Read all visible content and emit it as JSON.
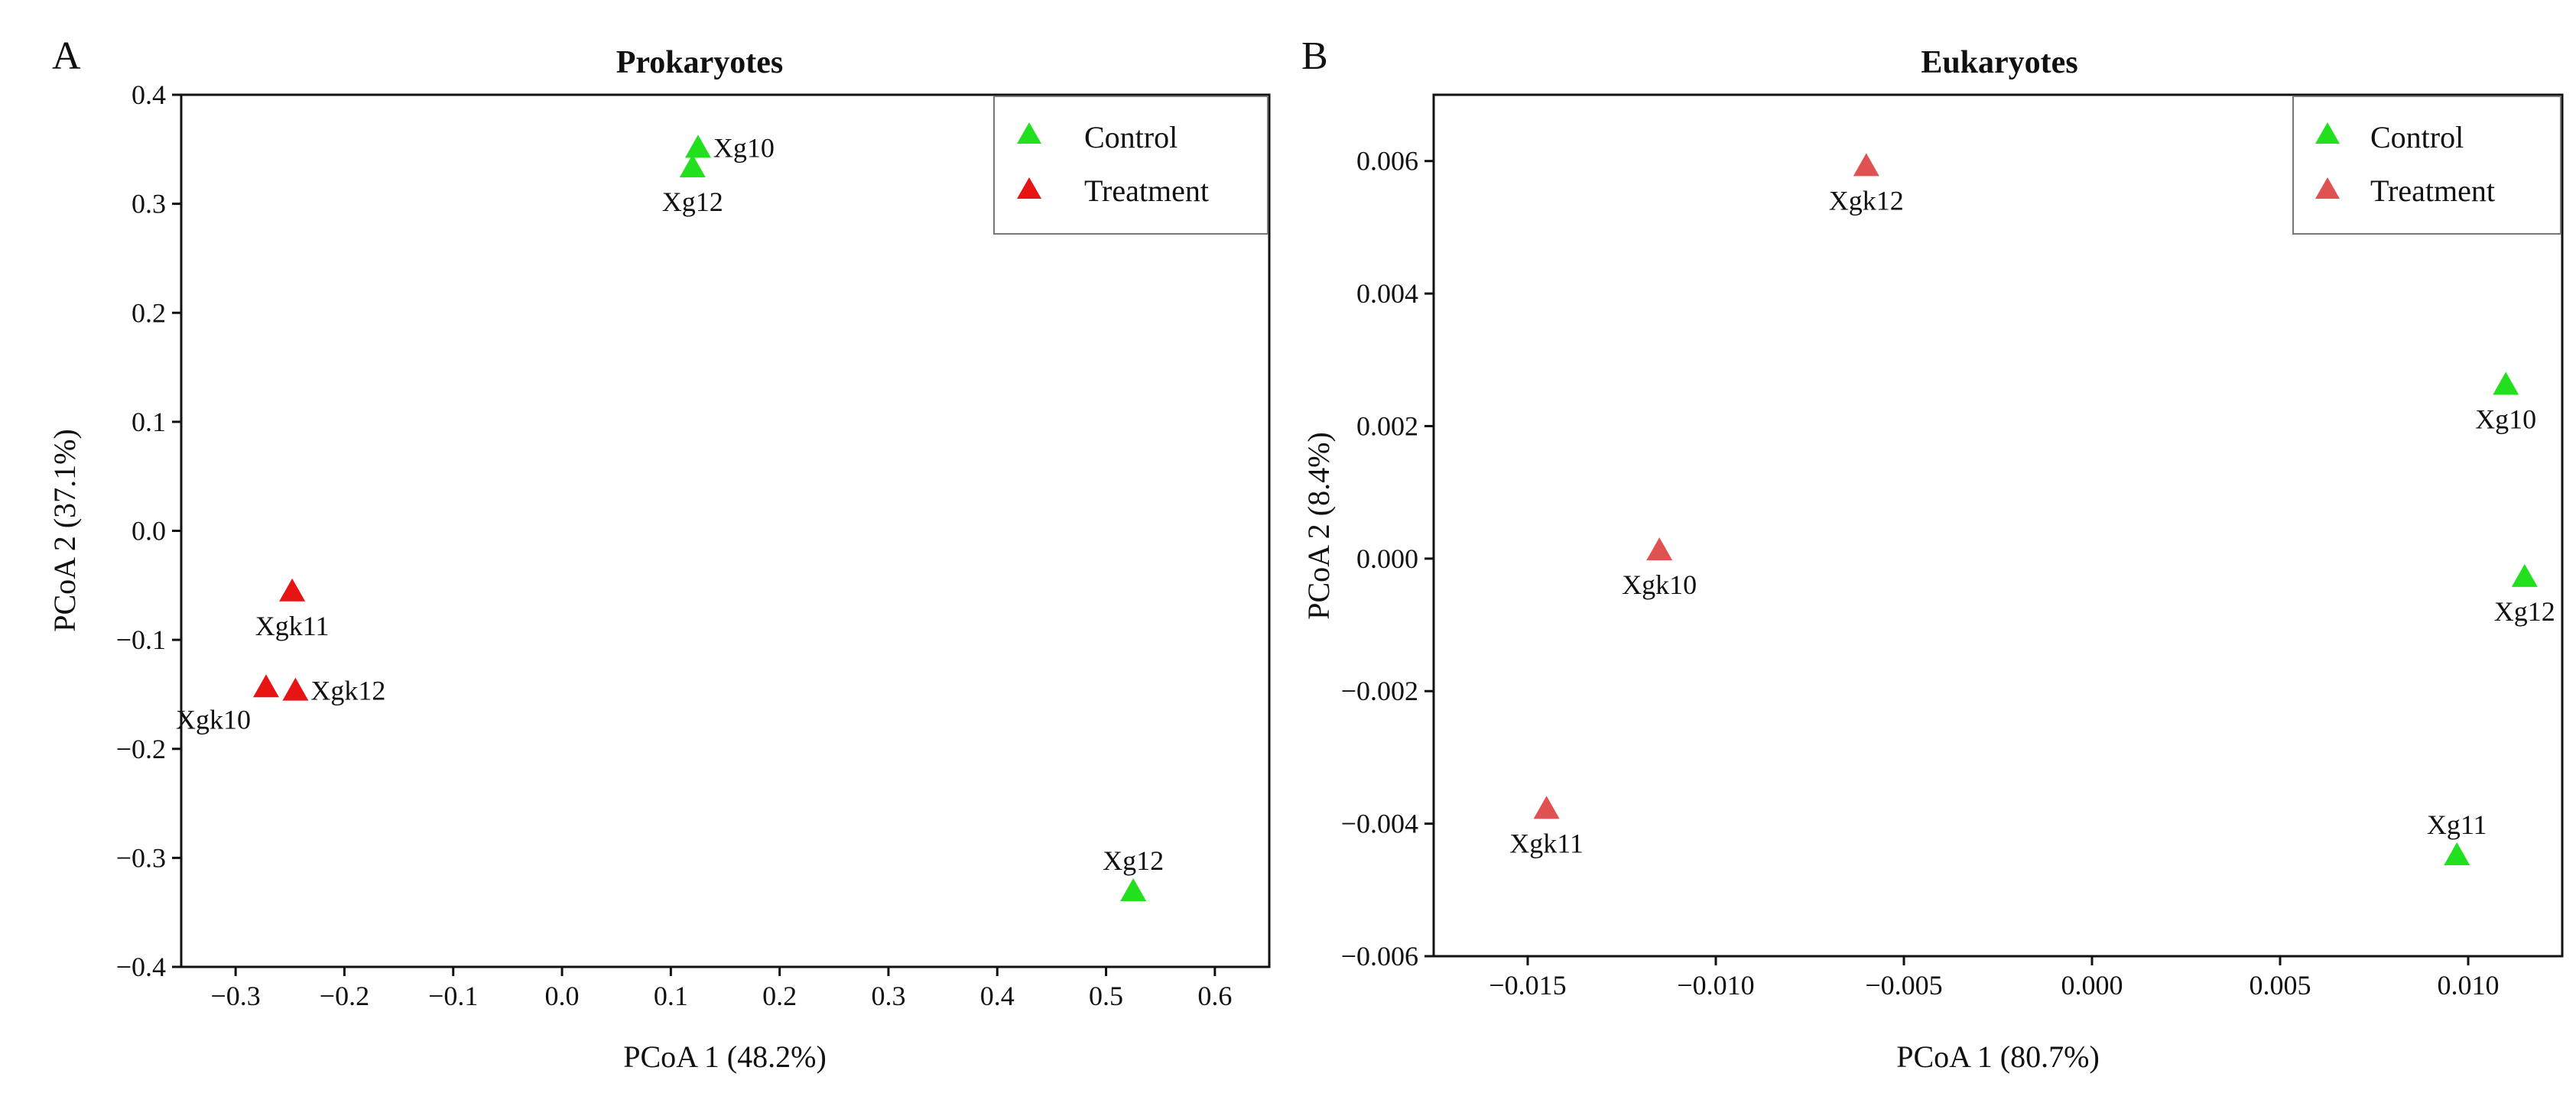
{
  "chart_data": [
    {
      "type": "scatter",
      "panel_letter": "A",
      "title": "Prokaryotes",
      "xlabel": "PCoA 1 (48.2%)",
      "ylabel": "PCoA 2 (37.1%)",
      "xlim": [
        -0.35,
        0.65
      ],
      "ylim": [
        -0.4,
        0.4
      ],
      "xticks": [
        -0.3,
        -0.2,
        -0.1,
        0.0,
        0.1,
        0.2,
        0.3,
        0.4,
        0.5,
        0.6
      ],
      "yticks": [
        -0.4,
        -0.3,
        -0.2,
        -0.1,
        0.0,
        0.1,
        0.2,
        0.3,
        0.4
      ],
      "xtick_labels": [
        "−0.3",
        "−0.2",
        "−0.1",
        "0.0",
        "0.1",
        "0.2",
        "0.3",
        "0.4",
        "0.5",
        "0.6"
      ],
      "ytick_labels": [
        "−0.4",
        "−0.3",
        "−0.2",
        "−0.1",
        "0.0",
        "0.1",
        "0.2",
        "0.3",
        "0.4"
      ],
      "grid": false,
      "legend_position": "top-right",
      "legend": [
        {
          "name": "Control",
          "color": "#22e01e"
        },
        {
          "name": "Treatment",
          "color": "#e81414"
        }
      ],
      "series": [
        {
          "name": "Control",
          "color": "#22e01e",
          "points": [
            {
              "x": 0.125,
              "y": 0.35,
              "label": "Xg10",
              "anchor": "right"
            },
            {
              "x": 0.12,
              "y": 0.332,
              "label": "Xg12",
              "anchor": "below"
            },
            {
              "x": 0.525,
              "y": -0.332,
              "label": "Xg12",
              "anchor": "above"
            }
          ]
        },
        {
          "name": "Treatment",
          "color": "#e81414",
          "points": [
            {
              "x": -0.248,
              "y": -0.057,
              "label": "Xgk11",
              "anchor": "below"
            },
            {
              "x": -0.272,
              "y": -0.145,
              "label": "Xgk10",
              "anchor": "below-left"
            },
            {
              "x": -0.245,
              "y": -0.148,
              "label": "Xgk12",
              "anchor": "right"
            }
          ]
        }
      ]
    },
    {
      "type": "scatter",
      "panel_letter": "B",
      "title": "Eukaryotes",
      "xlabel": "PCoA 1 (80.7%)",
      "ylabel": "PCoA 2 (8.4%)",
      "xlim": [
        -0.0175,
        0.0125
      ],
      "ylim": [
        -0.006,
        0.007
      ],
      "xticks": [
        -0.015,
        -0.01,
        -0.005,
        0.0,
        0.005,
        0.01
      ],
      "yticks": [
        -0.006,
        -0.004,
        -0.002,
        0.0,
        0.002,
        0.004,
        0.006
      ],
      "xtick_labels": [
        "−0.015",
        "−0.010",
        "−0.005",
        "0.000",
        "0.005",
        "0.010"
      ],
      "ytick_labels": [
        "−0.006",
        "−0.004",
        "−0.002",
        "0.000",
        "0.002",
        "0.004",
        "0.006"
      ],
      "grid": false,
      "legend_position": "top-right",
      "legend": [
        {
          "name": "Control",
          "color": "#22e01e"
        },
        {
          "name": "Treatment",
          "color": "#e05252"
        }
      ],
      "series": [
        {
          "name": "Control",
          "color": "#22e01e",
          "points": [
            {
              "x": 0.011,
              "y": 0.0026,
              "label": "Xg10",
              "anchor": "below"
            },
            {
              "x": 0.0115,
              "y": -0.0003,
              "label": "Xg12",
              "anchor": "below"
            },
            {
              "x": 0.0097,
              "y": -0.0045,
              "label": "Xg11",
              "anchor": "above"
            }
          ]
        },
        {
          "name": "Treatment",
          "color": "#e05252",
          "points": [
            {
              "x": -0.006,
              "y": 0.0059,
              "label": "Xgk12",
              "anchor": "below"
            },
            {
              "x": -0.0115,
              "y": 0.0001,
              "label": "Xgk10",
              "anchor": "below"
            },
            {
              "x": -0.0145,
              "y": -0.0038,
              "label": "Xgk11",
              "anchor": "below"
            }
          ]
        }
      ]
    }
  ]
}
